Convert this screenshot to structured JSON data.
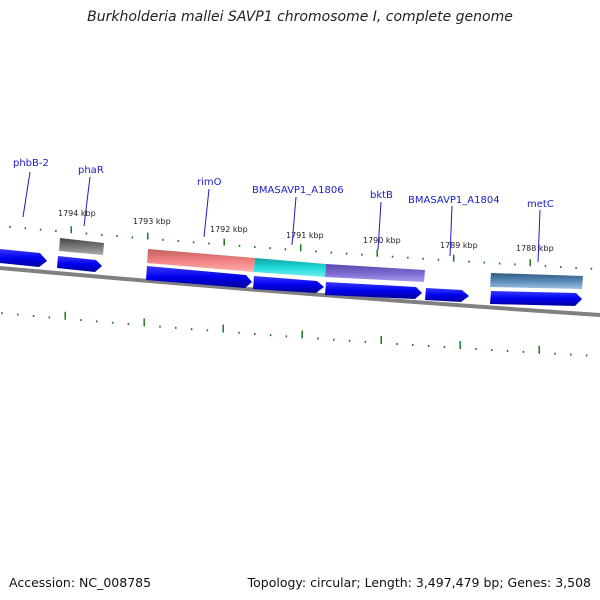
{
  "title": "Burkholderia mallei SAVP1 chromosome I, complete genome",
  "accession": "Accession: NC_008785",
  "topology": "Topology: circular; Length: 3,497,479 bp; Genes: 3,508",
  "tick_labels": [
    "1794 kbp",
    "1793 kbp",
    "1792 kbp",
    "1791 kbp",
    "1790 kbp",
    "1789 kbp",
    "1788 kbp"
  ],
  "gene_labels": [
    "phbB-2",
    "phaR",
    "rimO",
    "BMASAVP1_A1806",
    "bktB",
    "BMASAVP1_A1804",
    "metC"
  ],
  "colors": {
    "cds_arrow": "#0000ee",
    "backbone": "#808080",
    "tick": "#1a7a1a",
    "label_line": "#1a1ac8",
    "feature_gray": "#666666",
    "feature_salmon": "#f08080",
    "feature_cyan": "#20d0d0",
    "feature_purple": "#7b68cf",
    "feature_steelblue": "#5a8ab8"
  }
}
